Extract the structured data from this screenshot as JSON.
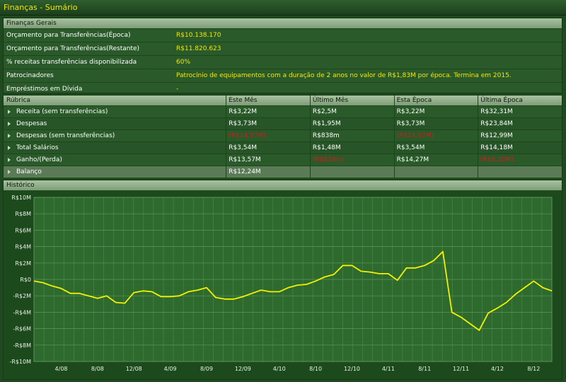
{
  "window": {
    "title": "Finanças - Sumário"
  },
  "general": {
    "header": "Finanças Gerais",
    "rows": [
      {
        "label": "Orçamento para Transferências(Época)",
        "value": "R$10.138.170"
      },
      {
        "label": "Orçamento para Transferências(Restante)",
        "value": "R$11.820.623"
      },
      {
        "label": "% receitas transferências disponibilizada",
        "value": "60%"
      },
      {
        "label": "Patrocinadores",
        "value": "Patrocínio de equipamentos com a duração de 2 anos no valor de R$1,83M por época. Termina em 2015."
      },
      {
        "label": "Empréstimos em Dívida",
        "value": "-"
      }
    ]
  },
  "table": {
    "headers": [
      "Rúbrica",
      "Este Mês",
      "Último Mês",
      "Esta Época",
      "Última Época"
    ],
    "rows": [
      {
        "label": "Receita (sem transferências)",
        "este_mes": "R$3,22M",
        "ultimo_mes": "R$2,5M",
        "esta_epoca": "R$3,22M",
        "ultima_epoca": "R$32,31M"
      },
      {
        "label": "Despesas",
        "este_mes": "R$3,73M",
        "ultimo_mes": "R$1,95M",
        "esta_epoca": "R$3,73M",
        "ultima_epoca": "R$23,84M"
      },
      {
        "label": "Despesas (sem transferências)",
        "este_mes": "(R$14,97M)",
        "ultimo_mes": "R$838m",
        "esta_epoca": "(R$14,97M)",
        "ultima_epoca": "R$12,99M"
      },
      {
        "label": "Total Salários",
        "este_mes": "R$3,54M",
        "ultimo_mes": "R$1,48M",
        "esta_epoca": "R$3,54M",
        "ultima_epoca": "R$14,18M"
      },
      {
        "label": "Ganho/(Perda)",
        "este_mes": "R$13,57M",
        "ultimo_mes": "(R$838m)",
        "esta_epoca": "R$14,27M",
        "ultima_epoca": "(R$6,20M)"
      },
      {
        "label": "Balanço",
        "este_mes": "R$12,24M",
        "ultimo_mes": "",
        "esta_epoca": "",
        "ultima_epoca": ""
      }
    ]
  },
  "history": {
    "header": "Histórico",
    "line_color": "#f2f200"
  },
  "chart_data": {
    "type": "line",
    "title": "",
    "xlabel": "",
    "ylabel": "",
    "ylim": [
      -10,
      10
    ],
    "y_ticks": [
      "R$10M",
      "R$8M",
      "R$6M",
      "R$4M",
      "R$2M",
      "R$0",
      "-R$2M",
      "-R$4M",
      "-R$6M",
      "-R$8M",
      "-R$10M"
    ],
    "y_tick_values": [
      10,
      8,
      6,
      4,
      2,
      0,
      -2,
      -4,
      -6,
      -8,
      -10
    ],
    "x_ticks": [
      "4/08",
      "8/08",
      "12/08",
      "4/09",
      "8/09",
      "12/09",
      "4/10",
      "8/10",
      "12/10",
      "4/11",
      "8/11",
      "12/11",
      "4/12",
      "8/12",
      "12/12"
    ],
    "x_tick_index": [
      3,
      7,
      11,
      15,
      19,
      23,
      27,
      31,
      35,
      39,
      43,
      47,
      51,
      55,
      59
    ],
    "grid": true,
    "series": [
      {
        "values": [
          -0.2,
          -0.4,
          -0.8,
          -1.1,
          -1.7,
          -1.7,
          -2.0,
          -2.3,
          -2.0,
          -2.8,
          -2.9,
          -1.6,
          -1.4,
          -1.5,
          -2.1,
          -2.1,
          -2.0,
          -1.5,
          -1.3,
          -1.0,
          -2.2,
          -2.4,
          -2.4,
          -2.1,
          -1.7,
          -1.3,
          -1.5,
          -1.5,
          -1.0,
          -0.7,
          -0.6,
          -0.2,
          0.3,
          0.6,
          1.7,
          1.7,
          1.0,
          0.9,
          0.7,
          0.7,
          -0.1,
          1.4,
          1.4,
          1.7,
          2.3,
          3.4,
          -4.0,
          -4.6,
          -5.4,
          -6.2,
          -4.1,
          -3.5,
          -2.8,
          -1.8,
          -1.0,
          -0.2,
          -1.0,
          -1.4
        ]
      }
    ]
  }
}
